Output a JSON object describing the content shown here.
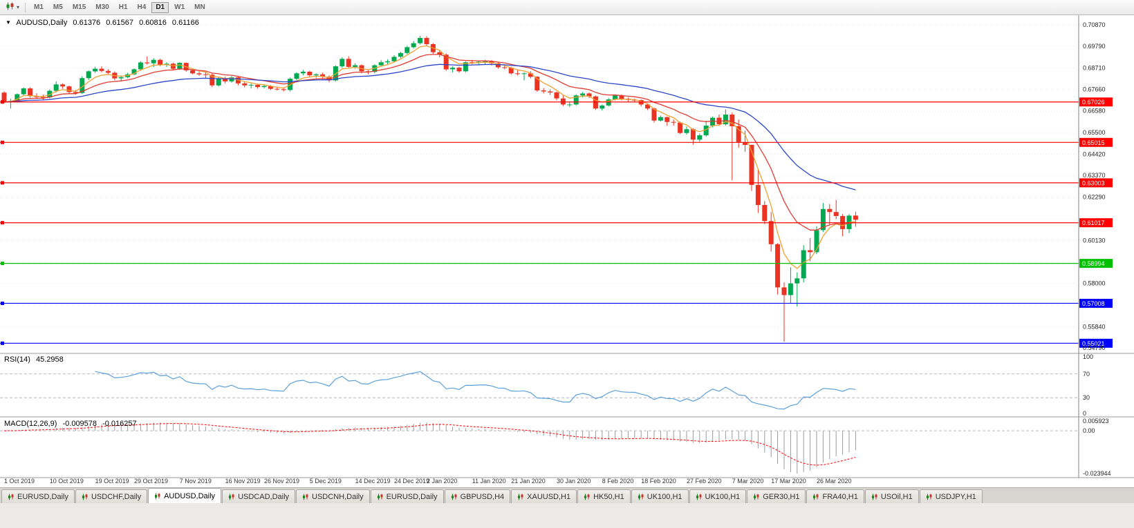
{
  "icons": {
    "symbol_marker": "▼",
    "dropdown_caret": "▾"
  },
  "toolbar": {
    "timeframes": [
      "M1",
      "M5",
      "M15",
      "M30",
      "H1",
      "H4",
      "D1",
      "W1",
      "MN"
    ],
    "active_timeframe": "D1"
  },
  "tabs": {
    "items": [
      "EURUSD,Daily",
      "USDCHF,Daily",
      "AUDUSD,Daily",
      "USDCAD,Daily",
      "USDCNH,Daily",
      "EURUSD,Daily",
      "GBPUSD,H4",
      "XAUUSD,H1",
      "HK50,H1",
      "UK100,H1",
      "UK100,H1",
      "GER30,H1",
      "FRA40,H1",
      "USOil,H1",
      "USDJPY,H1"
    ],
    "active_index": 2
  },
  "chart_data": {
    "type": "candlestick",
    "title": "AUDUSD,Daily",
    "ohlc_display": {
      "open": "0.61376",
      "high": "0.61567",
      "low": "0.60816",
      "close": "0.61166"
    },
    "ylim": [
      0.5462,
      0.71
    ],
    "yticks": [
      "0.70870",
      "0.69790",
      "0.68710",
      "0.67660",
      "0.66580",
      "0.65500",
      "0.64420",
      "0.63370",
      "0.62290",
      "0.61210",
      "0.60130",
      "0.59050",
      "0.58000",
      "0.56920",
      "0.55840",
      "0.54790"
    ],
    "levels": [
      {
        "price": 0.67026,
        "label": "0.67026",
        "color": "#FF0000"
      },
      {
        "price": 0.65015,
        "label": "0.65015",
        "color": "#FF0000"
      },
      {
        "price": 0.63003,
        "label": "0.63003",
        "color": "#FF0000"
      },
      {
        "price": 0.61017,
        "label": "0.61017",
        "color": "#FF0000"
      },
      {
        "price": 0.58994,
        "label": "0.58994",
        "color": "#00C000"
      },
      {
        "price": 0.57008,
        "label": "0.57008",
        "color": "#0000FF"
      },
      {
        "price": 0.55021,
        "label": "0.55021",
        "color": "#0000FF"
      }
    ],
    "moving_averages": [
      {
        "name": "fast",
        "period": 5,
        "method": "ema",
        "color": "#F0A030"
      },
      {
        "name": "medium",
        "period": 13,
        "method": "ema",
        "color": "#E03A30"
      },
      {
        "name": "slow",
        "period": 34,
        "method": "ema",
        "color": "#2B46C8"
      }
    ],
    "rsi": {
      "label": "RSI(14)",
      "value": "45.2958",
      "period": 14,
      "yticks": [
        "100",
        "70",
        "30",
        "0"
      ],
      "levels": [
        70,
        30
      ],
      "color": "#5B9FD8"
    },
    "macd": {
      "label": "MACD(12,26,9)",
      "value_main": "-0.009578",
      "value_signal": "-0.016257",
      "fast": 12,
      "slow": 26,
      "signal": 9,
      "ylim": [
        -0.023944,
        0.005923
      ],
      "yticks": [
        "0.005923",
        "0.00",
        "-0.023944"
      ]
    },
    "colors": {
      "up": "#00A94F",
      "down": "#EA3323",
      "grid": "#E6E6E6",
      "macd_hist": "#9A9A9A",
      "macd_signal": "#FF0000"
    },
    "candle_format": [
      "open",
      "high",
      "low",
      "close"
    ],
    "date_ticks": [
      [
        0,
        "1 Oct 2019"
      ],
      [
        7,
        "10 Oct 2019"
      ],
      [
        14,
        "19 Oct 2019"
      ],
      [
        20,
        "29 Oct 2019"
      ],
      [
        27,
        "7 Nov 2019"
      ],
      [
        34,
        "16 Nov 2019"
      ],
      [
        40,
        "26 Nov 2019"
      ],
      [
        47,
        "5 Dec 2019"
      ],
      [
        54,
        "14 Dec 2019"
      ],
      [
        60,
        "24 Dec 2019"
      ],
      [
        65,
        "2 Jan 2020"
      ],
      [
        72,
        "11 Jan 2020"
      ],
      [
        78,
        "21 Jan 2020"
      ],
      [
        85,
        "30 Jan 2020"
      ],
      [
        92,
        "8 Feb 2020"
      ],
      [
        98,
        "18 Feb 2020"
      ],
      [
        105,
        "27 Feb 2020"
      ],
      [
        112,
        "7 Mar 2020"
      ],
      [
        118,
        "17 Mar 2020"
      ],
      [
        125,
        "26 Mar 2020"
      ]
    ],
    "candles": [
      [
        0.6749,
        0.6756,
        0.6696,
        0.6703
      ],
      [
        0.6703,
        0.6718,
        0.667,
        0.6708
      ],
      [
        0.6708,
        0.6745,
        0.67,
        0.6741
      ],
      [
        0.6741,
        0.6775,
        0.6735,
        0.677
      ],
      [
        0.677,
        0.6776,
        0.6724,
        0.6732
      ],
      [
        0.6732,
        0.6746,
        0.6718,
        0.6727
      ],
      [
        0.6727,
        0.6739,
        0.671,
        0.6725
      ],
      [
        0.6725,
        0.6765,
        0.672,
        0.6758
      ],
      [
        0.6758,
        0.6805,
        0.675,
        0.679
      ],
      [
        0.679,
        0.6795,
        0.6768,
        0.678
      ],
      [
        0.678,
        0.6785,
        0.6745,
        0.6752
      ],
      [
        0.6752,
        0.6762,
        0.6739,
        0.6747
      ],
      [
        0.6747,
        0.683,
        0.6742,
        0.6821
      ],
      [
        0.6821,
        0.686,
        0.6812,
        0.6855
      ],
      [
        0.6855,
        0.6878,
        0.6848,
        0.6868
      ],
      [
        0.6868,
        0.688,
        0.685,
        0.6857
      ],
      [
        0.6857,
        0.6865,
        0.6838,
        0.6848
      ],
      [
        0.6848,
        0.6855,
        0.681,
        0.682
      ],
      [
        0.682,
        0.6835,
        0.6805,
        0.6826
      ],
      [
        0.6826,
        0.6848,
        0.682,
        0.684
      ],
      [
        0.684,
        0.687,
        0.6835,
        0.6865
      ],
      [
        0.6865,
        0.6905,
        0.6858,
        0.6899
      ],
      [
        0.6899,
        0.6929,
        0.6888,
        0.6895
      ],
      [
        0.6895,
        0.692,
        0.6876,
        0.6912
      ],
      [
        0.6912,
        0.6918,
        0.688,
        0.6888
      ],
      [
        0.6888,
        0.69,
        0.6877,
        0.6893
      ],
      [
        0.6893,
        0.6898,
        0.686,
        0.6868
      ],
      [
        0.6868,
        0.69,
        0.6862,
        0.6897
      ],
      [
        0.6897,
        0.6899,
        0.6853,
        0.686
      ],
      [
        0.686,
        0.6868,
        0.684,
        0.6845
      ],
      [
        0.6845,
        0.6855,
        0.6833,
        0.684
      ],
      [
        0.684,
        0.685,
        0.6823,
        0.6838
      ],
      [
        0.6838,
        0.6845,
        0.6777,
        0.6785
      ],
      [
        0.6785,
        0.6825,
        0.678,
        0.682
      ],
      [
        0.682,
        0.6828,
        0.6795,
        0.6805
      ],
      [
        0.6805,
        0.6832,
        0.6798,
        0.6825
      ],
      [
        0.6825,
        0.683,
        0.6785,
        0.6795
      ],
      [
        0.6795,
        0.6805,
        0.6775,
        0.6785
      ],
      [
        0.6785,
        0.6795,
        0.677,
        0.6788
      ],
      [
        0.6788,
        0.6793,
        0.6769,
        0.6777
      ],
      [
        0.6777,
        0.679,
        0.677,
        0.6782
      ],
      [
        0.6782,
        0.6786,
        0.6762,
        0.6768
      ],
      [
        0.6768,
        0.6778,
        0.676,
        0.6766
      ],
      [
        0.6766,
        0.6775,
        0.6755,
        0.6762
      ],
      [
        0.6762,
        0.6825,
        0.6755,
        0.6818
      ],
      [
        0.6818,
        0.685,
        0.681,
        0.6845
      ],
      [
        0.6845,
        0.6862,
        0.6835,
        0.6853
      ],
      [
        0.6853,
        0.6858,
        0.6828,
        0.6835
      ],
      [
        0.6835,
        0.6845,
        0.6823,
        0.684
      ],
      [
        0.684,
        0.6848,
        0.682,
        0.6828
      ],
      [
        0.6828,
        0.6835,
        0.68,
        0.681
      ],
      [
        0.681,
        0.6885,
        0.6805,
        0.688
      ],
      [
        0.688,
        0.6925,
        0.6872,
        0.6917
      ],
      [
        0.6917,
        0.693,
        0.687,
        0.6877
      ],
      [
        0.6877,
        0.6895,
        0.6868,
        0.6885
      ],
      [
        0.6885,
        0.689,
        0.6845,
        0.6855
      ],
      [
        0.6855,
        0.6865,
        0.684,
        0.6852
      ],
      [
        0.6852,
        0.689,
        0.6845,
        0.6885
      ],
      [
        0.6885,
        0.691,
        0.6878,
        0.69
      ],
      [
        0.69,
        0.6915,
        0.689,
        0.6905
      ],
      [
        0.6905,
        0.6935,
        0.6898,
        0.6927
      ],
      [
        0.6927,
        0.6952,
        0.692,
        0.6946
      ],
      [
        0.6946,
        0.6982,
        0.694,
        0.6975
      ],
      [
        0.6975,
        0.7005,
        0.6968,
        0.6995
      ],
      [
        0.6995,
        0.7032,
        0.6988,
        0.7021
      ],
      [
        0.7021,
        0.703,
        0.698,
        0.699
      ],
      [
        0.699,
        0.6995,
        0.6942,
        0.695
      ],
      [
        0.695,
        0.696,
        0.6925,
        0.6938
      ],
      [
        0.6938,
        0.6945,
        0.6858,
        0.6865
      ],
      [
        0.6865,
        0.688,
        0.685,
        0.6873
      ],
      [
        0.6873,
        0.6878,
        0.6848,
        0.6855
      ],
      [
        0.6855,
        0.6905,
        0.685,
        0.69
      ],
      [
        0.69,
        0.6912,
        0.689,
        0.6899
      ],
      [
        0.6899,
        0.691,
        0.6885,
        0.6903
      ],
      [
        0.6903,
        0.6912,
        0.6888,
        0.6905
      ],
      [
        0.6905,
        0.691,
        0.6885,
        0.6895
      ],
      [
        0.6895,
        0.69,
        0.6868,
        0.6875
      ],
      [
        0.6875,
        0.6885,
        0.6865,
        0.6873
      ],
      [
        0.6873,
        0.6878,
        0.6838,
        0.6845
      ],
      [
        0.6845,
        0.6865,
        0.6835,
        0.6843
      ],
      [
        0.6843,
        0.685,
        0.681,
        0.6845
      ],
      [
        0.6845,
        0.6855,
        0.682,
        0.6828
      ],
      [
        0.6828,
        0.683,
        0.6753,
        0.676
      ],
      [
        0.676,
        0.6772,
        0.6745,
        0.6755
      ],
      [
        0.6755,
        0.6765,
        0.6738,
        0.675
      ],
      [
        0.675,
        0.6755,
        0.671,
        0.672
      ],
      [
        0.672,
        0.6735,
        0.6682,
        0.669
      ],
      [
        0.669,
        0.6705,
        0.6678,
        0.669
      ],
      [
        0.669,
        0.674,
        0.6685,
        0.6735
      ],
      [
        0.6735,
        0.6752,
        0.6725,
        0.6745
      ],
      [
        0.6745,
        0.675,
        0.6722,
        0.673
      ],
      [
        0.673,
        0.6735,
        0.6663,
        0.667
      ],
      [
        0.667,
        0.669,
        0.666,
        0.6685
      ],
      [
        0.6685,
        0.6722,
        0.668,
        0.6715
      ],
      [
        0.6715,
        0.674,
        0.671,
        0.6735
      ],
      [
        0.6735,
        0.674,
        0.671,
        0.6718
      ],
      [
        0.6718,
        0.6725,
        0.67,
        0.6713
      ],
      [
        0.6713,
        0.672,
        0.67,
        0.6712
      ],
      [
        0.6712,
        0.6715,
        0.668,
        0.669
      ],
      [
        0.669,
        0.6695,
        0.6662,
        0.667
      ],
      [
        0.667,
        0.6675,
        0.66,
        0.661
      ],
      [
        0.661,
        0.6635,
        0.6605,
        0.6627
      ],
      [
        0.6627,
        0.663,
        0.6585,
        0.6603
      ],
      [
        0.6603,
        0.6615,
        0.6585,
        0.66
      ],
      [
        0.66,
        0.6605,
        0.6542,
        0.6548
      ],
      [
        0.6548,
        0.658,
        0.654,
        0.6567
      ],
      [
        0.6567,
        0.6572,
        0.649,
        0.6515
      ],
      [
        0.6515,
        0.6545,
        0.6505,
        0.6537
      ],
      [
        0.6537,
        0.661,
        0.653,
        0.6585
      ],
      [
        0.6585,
        0.663,
        0.6576,
        0.6624
      ],
      [
        0.6624,
        0.664,
        0.6585,
        0.6592
      ],
      [
        0.6592,
        0.6665,
        0.6585,
        0.664
      ],
      [
        0.664,
        0.665,
        0.6313,
        0.6582
      ],
      [
        0.6582,
        0.6615,
        0.6475,
        0.6503
      ],
      [
        0.6503,
        0.656,
        0.6455,
        0.6489
      ],
      [
        0.6489,
        0.649,
        0.626,
        0.629
      ],
      [
        0.629,
        0.6365,
        0.615,
        0.619
      ],
      [
        0.619,
        0.621,
        0.6095,
        0.611
      ],
      [
        0.611,
        0.6155,
        0.5958,
        0.5995
      ],
      [
        0.5995,
        0.6,
        0.5745,
        0.578
      ],
      [
        0.578,
        0.5805,
        0.551,
        0.5742
      ],
      [
        0.5742,
        0.588,
        0.57,
        0.58
      ],
      [
        0.58,
        0.5855,
        0.5685,
        0.5825
      ],
      [
        0.5825,
        0.599,
        0.5805,
        0.5965
      ],
      [
        0.5965,
        0.6025,
        0.591,
        0.5955
      ],
      [
        0.5955,
        0.6085,
        0.5945,
        0.6065
      ],
      [
        0.6065,
        0.62,
        0.6055,
        0.617
      ],
      [
        0.617,
        0.6195,
        0.609,
        0.6155
      ],
      [
        0.6155,
        0.6215,
        0.612,
        0.6135
      ],
      [
        0.6135,
        0.6145,
        0.6035,
        0.607
      ],
      [
        0.607,
        0.6145,
        0.605,
        0.6137
      ],
      [
        0.61376,
        0.61567,
        0.60816,
        0.61166
      ]
    ]
  }
}
